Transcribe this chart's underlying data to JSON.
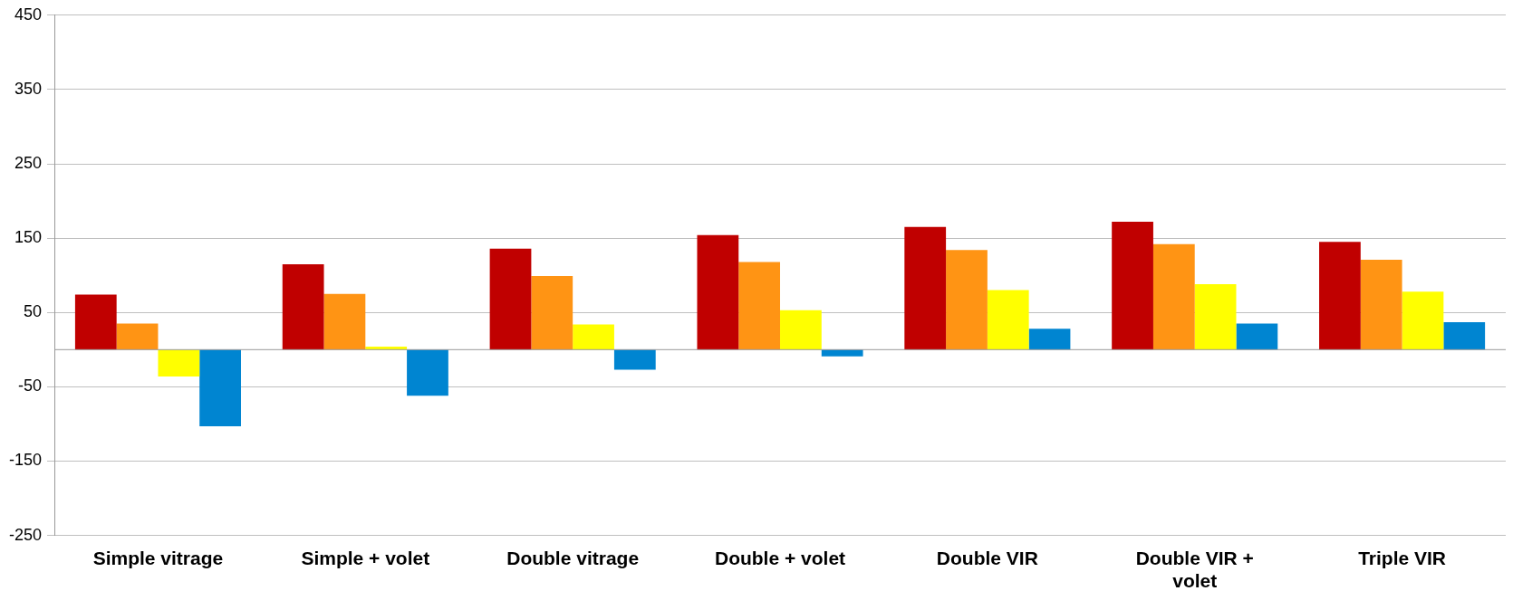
{
  "chart_data": {
    "type": "bar",
    "categories": [
      "Simple vitrage",
      "Simple + volet",
      "Double vitrage",
      "Double + volet",
      "Double VIR",
      "Double VIR + volet",
      "Triple VIR"
    ],
    "series": [
      {
        "color": "#c00000",
        "values": [
          74,
          115,
          136,
          154,
          165,
          172,
          145
        ]
      },
      {
        "color": "#ff9414",
        "values": [
          35,
          75,
          99,
          118,
          134,
          142,
          121
        ]
      },
      {
        "color": "#ffff00",
        "values": [
          -36,
          4,
          34,
          53,
          80,
          88,
          78
        ]
      },
      {
        "color": "#0085d1",
        "values": [
          -103,
          -62,
          -27,
          -9,
          28,
          35,
          37
        ]
      }
    ],
    "ylim": [
      -250,
      450
    ],
    "yticks": [
      -250,
      -150,
      -50,
      50,
      150,
      250,
      350,
      450
    ],
    "grid": "y",
    "legend": false
  }
}
